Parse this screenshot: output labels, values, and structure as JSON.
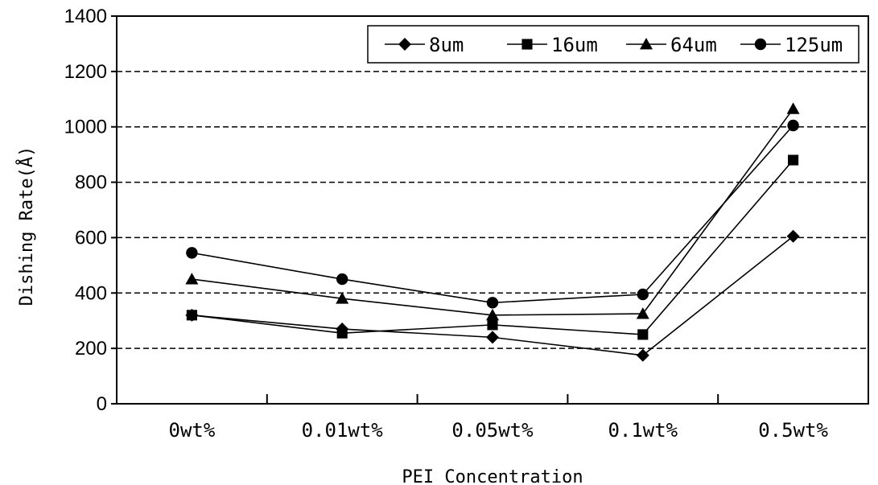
{
  "chart_data": {
    "type": "line",
    "title": "",
    "xlabel": "PEI Concentration",
    "ylabel": "Dishing Rate(Å)",
    "categories": [
      "0wt%",
      "0.01wt%",
      "0.05wt%",
      "0.1wt%",
      "0.5wt%"
    ],
    "ylim": [
      0,
      1400
    ],
    "yticks": [
      0,
      200,
      400,
      600,
      800,
      1000,
      1200,
      1400
    ],
    "grid": "horizontal dashed",
    "legend_position": "top-right",
    "series": [
      {
        "name": "8um",
        "marker": "diamond",
        "values": [
          320,
          270,
          240,
          175,
          605
        ]
      },
      {
        "name": "16um",
        "marker": "square",
        "values": [
          320,
          255,
          285,
          250,
          880
        ]
      },
      {
        "name": "64um",
        "marker": "triangle",
        "values": [
          450,
          380,
          320,
          325,
          1065
        ]
      },
      {
        "name": "125um",
        "marker": "circle",
        "values": [
          545,
          450,
          365,
          395,
          1005
        ]
      }
    ],
    "colors": {
      "line": "#000000",
      "grid": "#000000",
      "background": "#ffffff"
    }
  }
}
